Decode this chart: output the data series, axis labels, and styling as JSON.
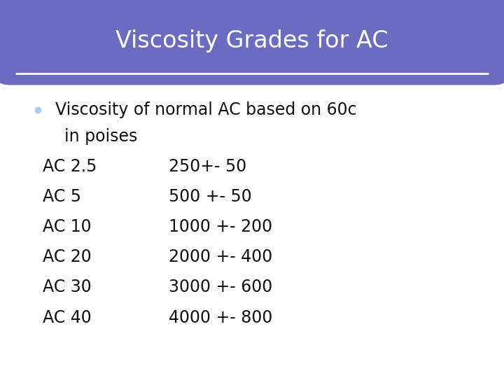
{
  "title": "Viscosity Grades for AC",
  "title_bg_color": "#6b6bbf",
  "title_text_color": "#ffffff",
  "title_fontsize": 24,
  "card_bg_color": "#ffffff",
  "card_border_color": "#6e8fa0",
  "bullet_color": "#aaccee",
  "bullet_fontsize": 17,
  "rows": [
    [
      "AC 2.5",
      "250+- 50"
    ],
    [
      "AC 5",
      "500 +- 50"
    ],
    [
      "AC 10",
      "1000 +- 200"
    ],
    [
      "AC 20",
      "2000 +- 400"
    ],
    [
      "AC 30",
      "3000 +- 600"
    ],
    [
      "AC 40",
      "4000 +- 800"
    ]
  ],
  "row_fontsize": 17,
  "fig_bg_color": "#f0f0f0",
  "white_line_color": "#ffffff"
}
